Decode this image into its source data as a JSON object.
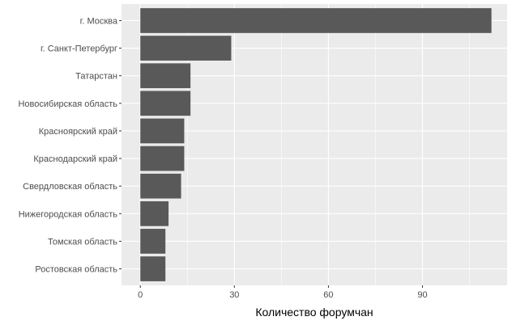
{
  "chart_data": {
    "type": "bar",
    "orientation": "horizontal",
    "categories": [
      "г. Москва",
      "г. Санкт-Петербург",
      "Татарстан",
      "Новосибирская область",
      "Красноярский край",
      "Краснодарский край",
      "Свердловская область",
      "Нижегородская область",
      "Томская область",
      "Ростовская область"
    ],
    "values": [
      112,
      29,
      16,
      16,
      14,
      14,
      13,
      9,
      8,
      8
    ],
    "xlabel": "Количество форумчан",
    "ylabel": "",
    "xticks": [
      0,
      30,
      60,
      90
    ],
    "xlim": [
      -6,
      117
    ],
    "bar_color": "#595959",
    "panel_color": "#ebebeb",
    "grid": true
  }
}
